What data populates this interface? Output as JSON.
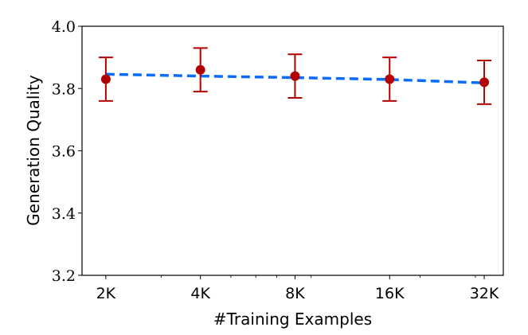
{
  "chart_data": {
    "type": "line",
    "title": "",
    "xlabel": "#Training Examples",
    "ylabel": "Generation Quality",
    "x_scale": "log",
    "xlim": [
      1680,
      36800
    ],
    "ylim": [
      3.2,
      4.0
    ],
    "x": [
      2000,
      4000,
      8000,
      16000,
      32000
    ],
    "x_tick_labels": [
      "2K",
      "4K",
      "8K",
      "16K",
      "32K"
    ],
    "x_minor_ticks": [
      3000,
      5000,
      6000,
      7000,
      9000,
      20000,
      30000
    ],
    "y_ticks": [
      3.2,
      3.4,
      3.6,
      3.8,
      4.0
    ],
    "y_tick_labels": [
      "3.2",
      "3.4",
      "3.6",
      "3.8",
      "4.0"
    ],
    "grid": false,
    "series": [
      {
        "kind": "errorbar",
        "color": "#b30000",
        "values": [
          3.83,
          3.86,
          3.84,
          3.83,
          3.82
        ],
        "error": [
          0.07,
          0.07,
          0.07,
          0.07,
          0.07
        ]
      },
      {
        "kind": "trend-dashed",
        "color": "#0a6cff",
        "values": [
          3.846,
          3.84,
          3.835,
          3.829,
          3.818
        ]
      }
    ]
  }
}
